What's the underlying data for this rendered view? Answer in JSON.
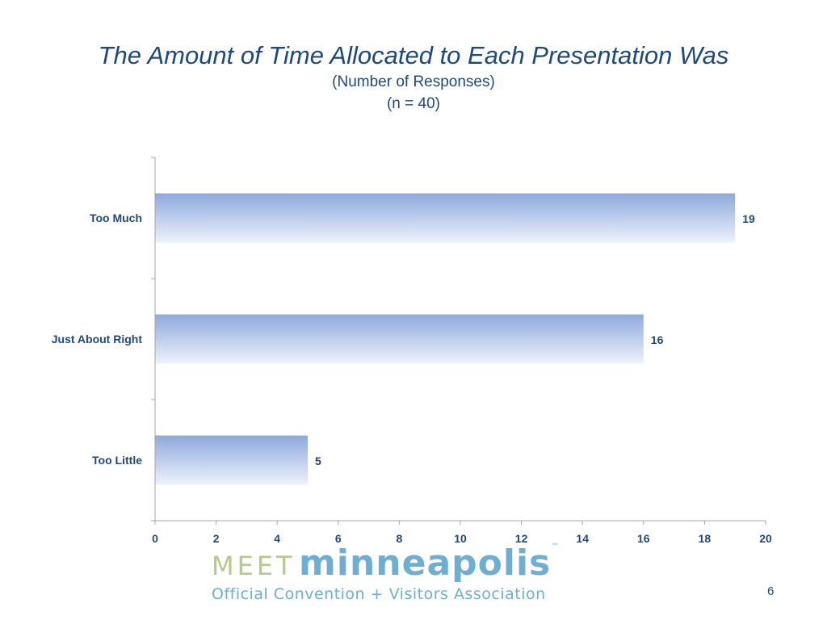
{
  "chart_data": {
    "type": "bar",
    "orientation": "horizontal",
    "title": "The Amount of Time Allocated to Each Presentation Was",
    "subtitle": "(Number of Responses)",
    "subtitle2": "(n = 40)",
    "categories": [
      "Too Much",
      "Just About Right",
      "Too Little"
    ],
    "values": [
      19,
      16,
      5
    ],
    "data_labels": [
      "19",
      "16",
      "5"
    ],
    "xlim": [
      0,
      20
    ],
    "xticks": [
      0,
      2,
      4,
      6,
      8,
      10,
      12,
      14,
      16,
      18,
      20
    ],
    "grid": false,
    "legend": "none",
    "colors": {
      "bar_top": "#8EA9DB",
      "bar_bottom": "#EEF2FA",
      "text": "#1F497D",
      "axis": "#A6A6A6"
    }
  },
  "footer": {
    "logo_meet": "MEET",
    "logo_city": "minneapolis",
    "logo_tm": "™",
    "logo_tagline": "Official Convention + Visitors Association",
    "page_number": "6"
  }
}
